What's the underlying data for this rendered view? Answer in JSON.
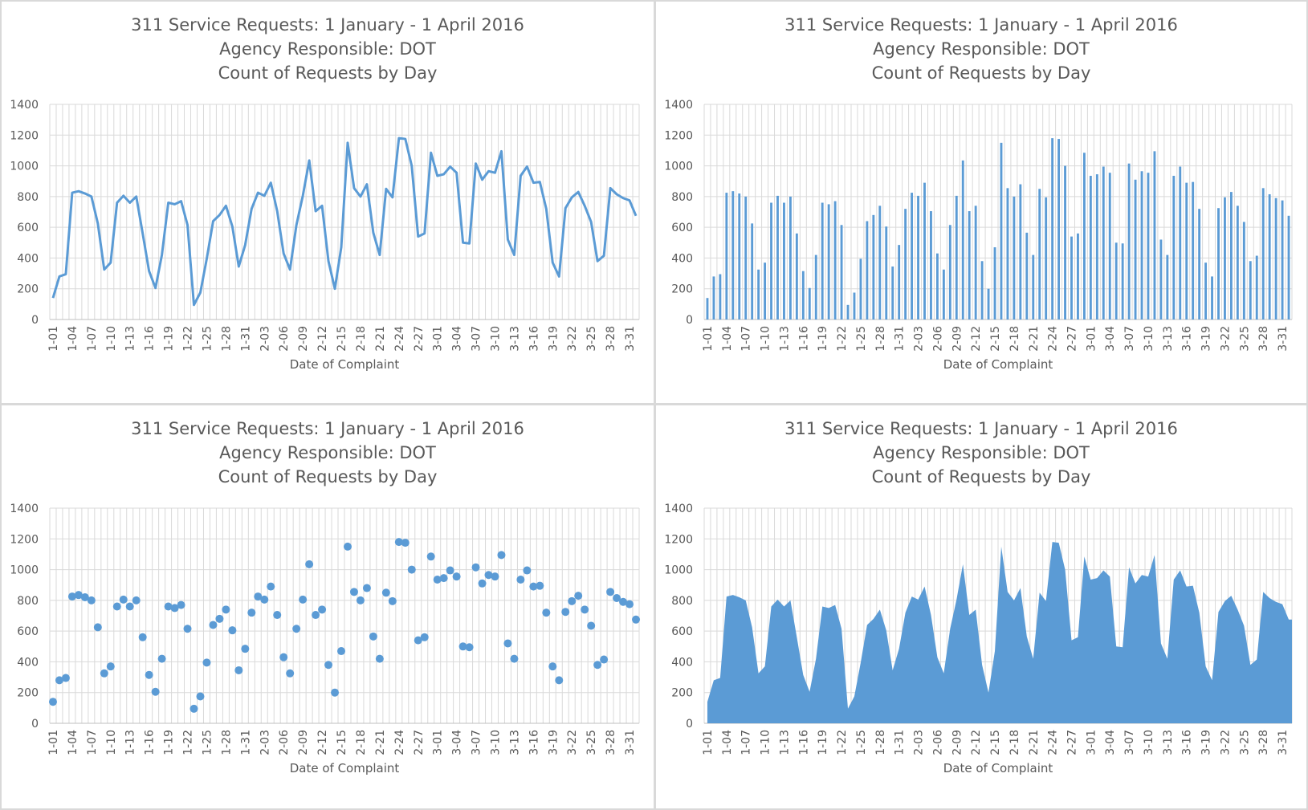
{
  "chart_common": {
    "title_lines": [
      "311 Service Requests: 1 January - 1 April 2016",
      "Agency Responsible:  DOT",
      "Count of Requests by Day"
    ],
    "xlabel": "Date of Complaint",
    "ylim": [
      0,
      1400
    ],
    "yticks": [
      0,
      200,
      400,
      600,
      800,
      1000,
      1200,
      1400
    ],
    "color": "#5b9bd5"
  },
  "chart_data": [
    {
      "type": "line",
      "title": "311 Service Requests: 1 January - 1 April 2016 / Agency Responsible:  DOT / Count of Requests by Day",
      "xlabel": "Date of Complaint",
      "ylabel": "",
      "ylim": [
        0,
        1400
      ],
      "grid": true,
      "legend": "none",
      "x": [
        "1-01",
        "1-02",
        "1-03",
        "1-04",
        "1-05",
        "1-06",
        "1-07",
        "1-08",
        "1-09",
        "1-10",
        "1-11",
        "1-12",
        "1-13",
        "1-14",
        "1-15",
        "1-16",
        "1-17",
        "1-18",
        "1-19",
        "1-20",
        "1-21",
        "1-22",
        "1-23",
        "1-24",
        "1-25",
        "1-26",
        "1-27",
        "1-28",
        "1-29",
        "1-30",
        "1-31",
        "2-01",
        "2-02",
        "2-03",
        "2-04",
        "2-05",
        "2-06",
        "2-07",
        "2-08",
        "2-09",
        "2-10",
        "2-11",
        "2-12",
        "2-13",
        "2-14",
        "2-15",
        "2-16",
        "2-17",
        "2-18",
        "2-19",
        "2-20",
        "2-21",
        "2-22",
        "2-23",
        "2-24",
        "2-25",
        "2-26",
        "2-27",
        "2-28",
        "2-29",
        "3-01",
        "3-02",
        "3-03",
        "3-04",
        "3-05",
        "3-06",
        "3-07",
        "3-08",
        "3-09",
        "3-10",
        "3-11",
        "3-12",
        "3-13",
        "3-14",
        "3-15",
        "3-16",
        "3-17",
        "3-18",
        "3-19",
        "3-20",
        "3-21",
        "3-22",
        "3-23",
        "3-24",
        "3-25",
        "3-26",
        "3-27",
        "3-28",
        "3-29",
        "3-30",
        "3-31",
        "4-01"
      ],
      "values": [
        140,
        280,
        295,
        825,
        835,
        820,
        800,
        625,
        325,
        370,
        760,
        805,
        760,
        800,
        560,
        315,
        205,
        420,
        760,
        750,
        770,
        615,
        95,
        175,
        395,
        640,
        680,
        740,
        605,
        345,
        485,
        720,
        825,
        805,
        890,
        705,
        430,
        325,
        615,
        805,
        1035,
        705,
        740,
        380,
        200,
        470,
        1150,
        855,
        800,
        880,
        565,
        420,
        850,
        795,
        1180,
        1175,
        1000,
        540,
        560,
        1085,
        935,
        945,
        995,
        955,
        500,
        495,
        1015,
        910,
        965,
        955,
        1095,
        520,
        420,
        935,
        995,
        890,
        895,
        720,
        370,
        280,
        725,
        795,
        830,
        740,
        635,
        380,
        415,
        855,
        815,
        790,
        775,
        675
      ]
    },
    {
      "type": "bar",
      "title": "311 Service Requests: 1 January - 1 April 2016 / Agency Responsible:  DOT / Count of Requests by Day",
      "xlabel": "Date of Complaint",
      "ylabel": "",
      "ylim": [
        0,
        1400
      ],
      "grid": true,
      "legend": "none",
      "x": [
        "1-01",
        "1-02",
        "1-03",
        "1-04",
        "1-05",
        "1-06",
        "1-07",
        "1-08",
        "1-09",
        "1-10",
        "1-11",
        "1-12",
        "1-13",
        "1-14",
        "1-15",
        "1-16",
        "1-17",
        "1-18",
        "1-19",
        "1-20",
        "1-21",
        "1-22",
        "1-23",
        "1-24",
        "1-25",
        "1-26",
        "1-27",
        "1-28",
        "1-29",
        "1-30",
        "1-31",
        "2-01",
        "2-02",
        "2-03",
        "2-04",
        "2-05",
        "2-06",
        "2-07",
        "2-08",
        "2-09",
        "2-10",
        "2-11",
        "2-12",
        "2-13",
        "2-14",
        "2-15",
        "2-16",
        "2-17",
        "2-18",
        "2-19",
        "2-20",
        "2-21",
        "2-22",
        "2-23",
        "2-24",
        "2-25",
        "2-26",
        "2-27",
        "2-28",
        "2-29",
        "3-01",
        "3-02",
        "3-03",
        "3-04",
        "3-05",
        "3-06",
        "3-07",
        "3-08",
        "3-09",
        "3-10",
        "3-11",
        "3-12",
        "3-13",
        "3-14",
        "3-15",
        "3-16",
        "3-17",
        "3-18",
        "3-19",
        "3-20",
        "3-21",
        "3-22",
        "3-23",
        "3-24",
        "3-25",
        "3-26",
        "3-27",
        "3-28",
        "3-29",
        "3-30",
        "3-31",
        "4-01"
      ],
      "values": [
        140,
        280,
        295,
        825,
        835,
        820,
        800,
        625,
        325,
        370,
        760,
        805,
        760,
        800,
        560,
        315,
        205,
        420,
        760,
        750,
        770,
        615,
        95,
        175,
        395,
        640,
        680,
        740,
        605,
        345,
        485,
        720,
        825,
        805,
        890,
        705,
        430,
        325,
        615,
        805,
        1035,
        705,
        740,
        380,
        200,
        470,
        1150,
        855,
        800,
        880,
        565,
        420,
        850,
        795,
        1180,
        1175,
        1000,
        540,
        560,
        1085,
        935,
        945,
        995,
        955,
        500,
        495,
        1015,
        910,
        965,
        955,
        1095,
        520,
        420,
        935,
        995,
        890,
        895,
        720,
        370,
        280,
        725,
        795,
        830,
        740,
        635,
        380,
        415,
        855,
        815,
        790,
        775,
        675
      ]
    },
    {
      "type": "scatter",
      "title": "311 Service Requests: 1 January - 1 April 2016 / Agency Responsible:  DOT / Count of Requests by Day",
      "xlabel": "Date of Complaint",
      "ylabel": "",
      "ylim": [
        0,
        1400
      ],
      "grid": true,
      "legend": "none",
      "x": [
        "1-01",
        "1-02",
        "1-03",
        "1-04",
        "1-05",
        "1-06",
        "1-07",
        "1-08",
        "1-09",
        "1-10",
        "1-11",
        "1-12",
        "1-13",
        "1-14",
        "1-15",
        "1-16",
        "1-17",
        "1-18",
        "1-19",
        "1-20",
        "1-21",
        "1-22",
        "1-23",
        "1-24",
        "1-25",
        "1-26",
        "1-27",
        "1-28",
        "1-29",
        "1-30",
        "1-31",
        "2-01",
        "2-02",
        "2-03",
        "2-04",
        "2-05",
        "2-06",
        "2-07",
        "2-08",
        "2-09",
        "2-10",
        "2-11",
        "2-12",
        "2-13",
        "2-14",
        "2-15",
        "2-16",
        "2-17",
        "2-18",
        "2-19",
        "2-20",
        "2-21",
        "2-22",
        "2-23",
        "2-24",
        "2-25",
        "2-26",
        "2-27",
        "2-28",
        "2-29",
        "3-01",
        "3-02",
        "3-03",
        "3-04",
        "3-05",
        "3-06",
        "3-07",
        "3-08",
        "3-09",
        "3-10",
        "3-11",
        "3-12",
        "3-13",
        "3-14",
        "3-15",
        "3-16",
        "3-17",
        "3-18",
        "3-19",
        "3-20",
        "3-21",
        "3-22",
        "3-23",
        "3-24",
        "3-25",
        "3-26",
        "3-27",
        "3-28",
        "3-29",
        "3-30",
        "3-31",
        "4-01"
      ],
      "values": [
        140,
        280,
        295,
        825,
        835,
        820,
        800,
        625,
        325,
        370,
        760,
        805,
        760,
        800,
        560,
        315,
        205,
        420,
        760,
        750,
        770,
        615,
        95,
        175,
        395,
        640,
        680,
        740,
        605,
        345,
        485,
        720,
        825,
        805,
        890,
        705,
        430,
        325,
        615,
        805,
        1035,
        705,
        740,
        380,
        200,
        470,
        1150,
        855,
        800,
        880,
        565,
        420,
        850,
        795,
        1180,
        1175,
        1000,
        540,
        560,
        1085,
        935,
        945,
        995,
        955,
        500,
        495,
        1015,
        910,
        965,
        955,
        1095,
        520,
        420,
        935,
        995,
        890,
        895,
        720,
        370,
        280,
        725,
        795,
        830,
        740,
        635,
        380,
        415,
        855,
        815,
        790,
        775,
        675
      ]
    },
    {
      "type": "area",
      "title": "311 Service Requests: 1 January - 1 April 2016 / Agency Responsible:  DOT / Count of Requests by Day",
      "xlabel": "Date of Complaint",
      "ylabel": "",
      "ylim": [
        0,
        1400
      ],
      "grid": true,
      "legend": "none",
      "x": [
        "1-01",
        "1-02",
        "1-03",
        "1-04",
        "1-05",
        "1-06",
        "1-07",
        "1-08",
        "1-09",
        "1-10",
        "1-11",
        "1-12",
        "1-13",
        "1-14",
        "1-15",
        "1-16",
        "1-17",
        "1-18",
        "1-19",
        "1-20",
        "1-21",
        "1-22",
        "1-23",
        "1-24",
        "1-25",
        "1-26",
        "1-27",
        "1-28",
        "1-29",
        "1-30",
        "1-31",
        "2-01",
        "2-02",
        "2-03",
        "2-04",
        "2-05",
        "2-06",
        "2-07",
        "2-08",
        "2-09",
        "2-10",
        "2-11",
        "2-12",
        "2-13",
        "2-14",
        "2-15",
        "2-16",
        "2-17",
        "2-18",
        "2-19",
        "2-20",
        "2-21",
        "2-22",
        "2-23",
        "2-24",
        "2-25",
        "2-26",
        "2-27",
        "2-28",
        "2-29",
        "3-01",
        "3-02",
        "3-03",
        "3-04",
        "3-05",
        "3-06",
        "3-07",
        "3-08",
        "3-09",
        "3-10",
        "3-11",
        "3-12",
        "3-13",
        "3-14",
        "3-15",
        "3-16",
        "3-17",
        "3-18",
        "3-19",
        "3-20",
        "3-21",
        "3-22",
        "3-23",
        "3-24",
        "3-25",
        "3-26",
        "3-27",
        "3-28",
        "3-29",
        "3-30",
        "3-31",
        "4-01"
      ],
      "values": [
        140,
        280,
        295,
        825,
        835,
        820,
        800,
        625,
        325,
        370,
        760,
        805,
        760,
        800,
        560,
        315,
        205,
        420,
        760,
        750,
        770,
        615,
        95,
        175,
        395,
        640,
        680,
        740,
        605,
        345,
        485,
        720,
        825,
        805,
        890,
        705,
        430,
        325,
        615,
        805,
        1035,
        705,
        740,
        380,
        200,
        470,
        1150,
        855,
        800,
        880,
        565,
        420,
        850,
        795,
        1180,
        1175,
        1000,
        540,
        560,
        1085,
        935,
        945,
        995,
        955,
        500,
        495,
        1015,
        910,
        965,
        955,
        1095,
        520,
        420,
        935,
        995,
        890,
        895,
        720,
        370,
        280,
        725,
        795,
        830,
        740,
        635,
        380,
        415,
        855,
        815,
        790,
        775,
        675
      ]
    }
  ]
}
